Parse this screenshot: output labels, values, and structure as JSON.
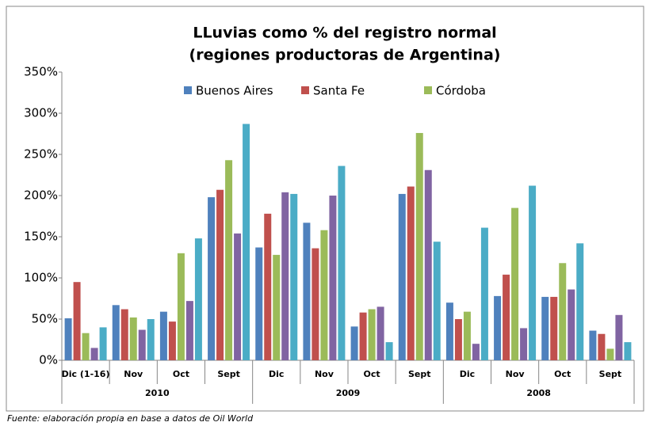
{
  "chart_data": {
    "type": "bar",
    "title": [
      "LLuvias como % del registro normal",
      "(regiones productoras de Argentina)"
    ],
    "categories": [
      "Dic (1-16)",
      "Nov",
      "Oct",
      "Sept",
      "Dic",
      "Nov",
      "Oct",
      "Sept",
      "Dic",
      "Nov",
      "Oct",
      "Sept"
    ],
    "category_groups": [
      "2010",
      "2009",
      "2008"
    ],
    "series": [
      {
        "name": "Buenos Aires",
        "color": "#4f81bd",
        "values": [
          51,
          67,
          59,
          198,
          137,
          167,
          41,
          202,
          70,
          78,
          77,
          36
        ]
      },
      {
        "name": "Santa Fe",
        "color": "#c0504d",
        "values": [
          95,
          62,
          47,
          207,
          178,
          136,
          58,
          211,
          50,
          104,
          77,
          32
        ]
      },
      {
        "name": "Córdoba",
        "color": "#9bbb59",
        "values": [
          33,
          52,
          130,
          243,
          128,
          158,
          62,
          276,
          59,
          185,
          118,
          14
        ]
      },
      {
        "color": "#8064a2",
        "values": [
          15,
          37,
          72,
          154,
          204,
          200,
          65,
          231,
          20,
          39,
          86,
          55
        ]
      },
      {
        "color": "#4bacc6",
        "values": [
          40,
          50,
          148,
          287,
          202,
          236,
          22,
          144,
          161,
          212,
          142,
          22
        ]
      }
    ],
    "ylim": [
      0,
      350
    ],
    "yticks": [
      {
        "value": 0,
        "label": "0%"
      },
      {
        "value": 50,
        "label": "50%"
      },
      {
        "value": 100,
        "label": "100%"
      },
      {
        "value": 150,
        "label": "150%"
      },
      {
        "value": 200,
        "label": "200%"
      },
      {
        "value": 250,
        "label": "250%"
      },
      {
        "value": 300,
        "label": "300%"
      },
      {
        "value": 350,
        "label": "350%"
      }
    ],
    "grid": false,
    "footnote": "Fuente: elaboración propia en base a datos de Oil World"
  }
}
